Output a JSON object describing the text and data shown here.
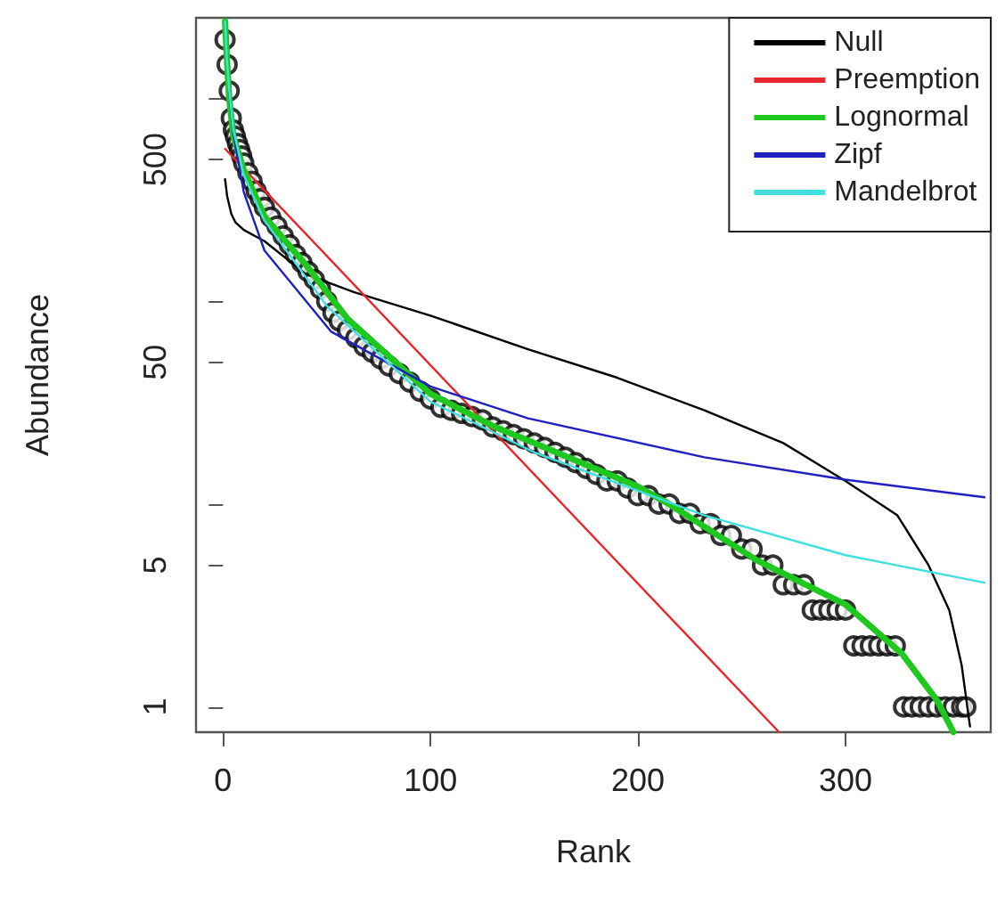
{
  "chart_data": {
    "type": "line",
    "xlabel": "Rank",
    "ylabel": "Abundance",
    "log": "y",
    "grid": false,
    "legend": "top right",
    "xlim": [
      -13,
      370
    ],
    "xticks": [
      0,
      100,
      200,
      300
    ],
    "ylim": [
      0.75,
      2500
    ],
    "yticks": [
      1,
      5,
      {
        "value": 10,
        "label": null
      },
      50,
      {
        "value": 100,
        "label": null
      },
      500,
      {
        "value": 1000,
        "label": null
      }
    ],
    "series": [
      {
        "type": "scatter",
        "marker": "circle",
        "color": "#000000",
        "x": [
          1,
          2,
          3,
          4,
          5,
          6,
          7,
          8,
          9,
          10,
          12,
          14,
          16,
          18,
          20,
          23,
          26,
          29,
          32,
          35,
          38,
          41,
          44,
          47,
          50,
          53,
          56,
          60,
          64,
          68,
          72,
          76,
          80,
          85,
          90,
          95,
          100,
          105,
          110,
          115,
          120,
          125,
          130,
          135,
          140,
          145,
          150,
          155,
          160,
          165,
          170,
          175,
          180,
          185,
          190,
          195,
          200,
          205,
          210,
          215,
          220,
          225,
          230,
          235,
          240,
          245,
          250,
          255,
          260,
          265,
          270,
          275,
          280,
          284,
          288,
          292,
          296,
          300,
          304,
          308,
          312,
          316,
          320,
          324,
          328,
          332,
          336,
          340,
          344,
          348,
          352,
          356,
          358
        ],
        "values": [
          1950,
          1470,
          1090,
          800,
          700,
          650,
          600,
          560,
          520,
          480,
          430,
          390,
          350,
          320,
          290,
          260,
          235,
          210,
          190,
          170,
          155,
          140,
          128,
          115,
          100,
          88,
          80,
          72,
          66,
          60,
          56,
          52,
          48,
          44,
          40,
          36,
          33,
          30,
          29,
          28,
          27,
          26,
          24,
          23,
          22,
          21,
          20,
          19,
          18,
          17,
          16,
          15,
          14,
          13,
          13,
          12,
          11,
          11,
          10,
          10,
          9,
          9,
          8,
          8,
          7,
          7,
          6,
          6,
          5,
          5,
          4,
          4,
          4,
          3,
          3,
          3,
          3,
          3,
          2,
          2,
          2,
          2,
          2,
          2,
          1,
          1,
          1,
          1,
          1,
          1,
          1,
          1,
          1
        ]
      },
      {
        "name": "Null",
        "color": "#000000",
        "x": [
          1,
          2,
          4,
          6,
          10,
          20,
          40,
          63,
          100,
          147,
          190,
          232,
          270,
          300,
          325,
          340,
          350,
          356,
          360
        ],
        "values": [
          400,
          330,
          270,
          245,
          225,
          198,
          136,
          111,
          85,
          58,
          42,
          29,
          20,
          13,
          8.8,
          5,
          3,
          1.6,
          0.8
        ]
      },
      {
        "name": "Preemption",
        "color": "#e8262b",
        "x": [
          1,
          268
        ],
        "values": [
          565,
          0.75
        ]
      },
      {
        "name": "Lognormal",
        "color": "#1ec81e",
        "x": [
          1,
          2,
          3,
          5,
          10,
          20,
          40,
          60,
          100,
          131,
          150,
          200,
          215,
          257,
          300,
          327,
          344,
          352
        ],
        "values": [
          2400,
          1500,
          1000,
          650,
          445,
          262,
          151,
          82,
          35,
          24,
          20,
          12.2,
          10,
          5.3,
          3.2,
          1.84,
          1.08,
          0.75
        ]
      },
      {
        "name": "Zipf",
        "color": "#2020c0",
        "x": [
          3,
          5,
          10,
          20,
          52,
          100,
          147,
          232,
          300,
          367
        ],
        "values": [
          1100,
          672,
          346,
          178,
          71,
          38,
          26.5,
          17,
          13.2,
          10.8
        ]
      },
      {
        "name": "Mandelbrot",
        "color": "#40e0e0",
        "x": [
          1,
          2,
          3,
          5,
          10,
          20,
          50,
          100,
          150,
          232,
          300,
          367
        ],
        "values": [
          2400,
          1500,
          1100,
          700,
          420,
          250,
          95,
          32,
          18,
          8.8,
          5.6,
          4.1
        ]
      }
    ]
  }
}
